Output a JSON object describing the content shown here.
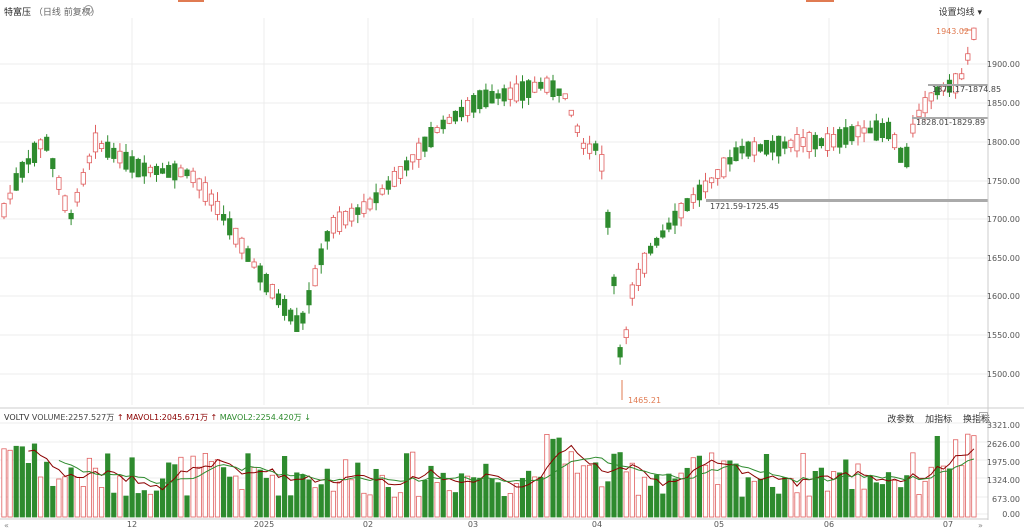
{
  "header": {
    "instrument": "特富压",
    "subtitle": "（日线 前复权）",
    "ma_setting_label": "设置均线",
    "dropdown_glyph": "▾"
  },
  "colors": {
    "up": "#e06060",
    "down": "#2e8b2e",
    "ma1": "#8b0000",
    "ma2": "#2e8b2e",
    "grid": "#ececec"
  },
  "price_axis": {
    "ticks": [
      "1900.00",
      "1850.00",
      "1800.00",
      "1750.00",
      "1700.00",
      "1650.00",
      "1600.00",
      "1550.00",
      "1500.00"
    ]
  },
  "annotations": {
    "max_label": "1943.02",
    "min_label": "1465.21",
    "zones": [
      "1872.17-1874.85",
      "1828.01-1829.89",
      "1721.59-1725.45"
    ]
  },
  "volume": {
    "title": "VOLTV",
    "volume_label": "VOLUME:2257.527万",
    "mavol1_label": "MAVOL1:2045.671万",
    "mavol2_label": "MAVOL2:2254.420万",
    "up_arrow": "↑",
    "down_arrow": "↓",
    "buttons": [
      "改参数",
      "加指标",
      "换指标"
    ],
    "close_glyph": "×",
    "ticks": [
      "3321.00",
      "2626.00",
      "1975.00",
      "1324.00",
      "673.00",
      "0.00"
    ]
  },
  "x_axis": {
    "labels": [
      "12",
      "2025",
      "02",
      "03",
      "04",
      "05",
      "06",
      "07"
    ]
  },
  "icons": {
    "gear": "gear-icon",
    "close": "close-icon",
    "dropdown": "chevron-down-icon",
    "nav_prev": "double-left-icon",
    "nav_next": "double-right-icon"
  },
  "chart_data": {
    "type": "candlestick",
    "price_ylim": [
      1450,
      1950
    ],
    "volume_ylim": [
      0,
      3321
    ],
    "volume_unit": "万",
    "x_period_labels": [
      "12",
      "2025",
      "02",
      "03",
      "04",
      "05",
      "06",
      "07"
    ],
    "last_close": 1943.02,
    "period_high": 1943.02,
    "period_low": 1465.21
  }
}
